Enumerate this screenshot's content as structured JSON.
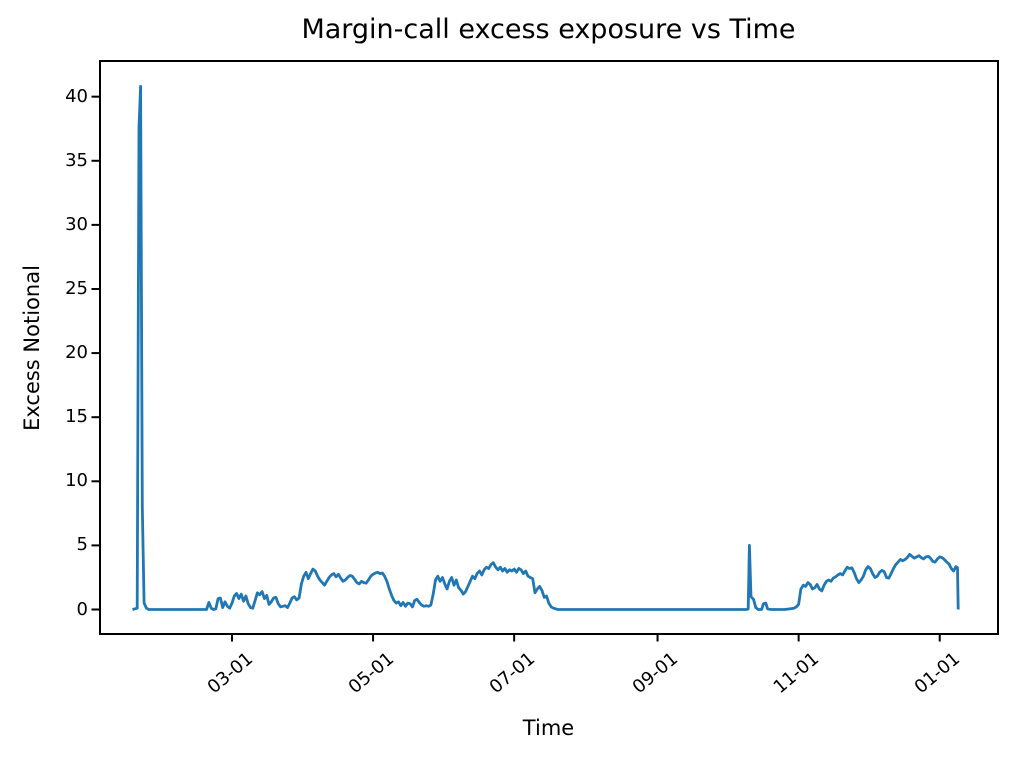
{
  "figure": {
    "title": "Margin-call excess exposure vs Time"
  },
  "chart_data": {
    "type": "line",
    "title": "Margin-call excess exposure vs Time",
    "xlabel": "Time",
    "ylabel": "Excess Notional",
    "grid": false,
    "legend": null,
    "x_axis": {
      "unit": "date (month-day), daily observations spanning about one year",
      "tick_labels": [
        "03-01",
        "05-01",
        "07-01",
        "09-01",
        "11-01",
        "01-01"
      ],
      "tick_day_index": [
        59,
        120,
        181,
        243,
        304,
        365
      ],
      "range_day_index": [
        1.5,
        390.2
      ],
      "label_rotation_deg": 40
    },
    "y_axis": {
      "tick_values": [
        0,
        5,
        10,
        15,
        20,
        25,
        30,
        35,
        40
      ],
      "tick_labels": [
        "0",
        "5",
        "10",
        "15",
        "20",
        "25",
        "30",
        "35",
        "40"
      ],
      "range": [
        -1.91,
        42.86
      ]
    },
    "series": [
      {
        "name": "Excess Notional",
        "color": "#1f77b4",
        "line_width": 2.8,
        "points_day_value": [
          [
            16,
            0
          ],
          [
            17,
            0.05
          ],
          [
            18,
            0.1
          ],
          [
            18.8,
            37.6
          ],
          [
            19.5,
            40.8
          ],
          [
            20.2,
            8.0
          ],
          [
            21,
            0.5
          ],
          [
            22,
            0.1
          ],
          [
            23,
            0
          ],
          [
            30,
            0
          ],
          [
            40,
            0
          ],
          [
            48,
            0
          ],
          [
            49,
            0.55
          ],
          [
            50,
            0.1
          ],
          [
            51,
            0
          ],
          [
            52,
            0.05
          ],
          [
            53,
            0.85
          ],
          [
            54,
            0.9
          ],
          [
            55,
            0.15
          ],
          [
            56,
            0.6
          ],
          [
            57,
            0.25
          ],
          [
            58,
            0.1
          ],
          [
            59,
            0.5
          ],
          [
            60,
            1.05
          ],
          [
            61,
            1.25
          ],
          [
            62,
            0.85
          ],
          [
            63,
            1.2
          ],
          [
            64,
            0.65
          ],
          [
            65,
            1.05
          ],
          [
            66,
            0.45
          ],
          [
            67,
            0.15
          ],
          [
            68,
            0.1
          ],
          [
            69,
            0.7
          ],
          [
            70,
            1.3
          ],
          [
            71,
            1.15
          ],
          [
            72,
            1.4
          ],
          [
            73,
            0.85
          ],
          [
            74,
            1.1
          ],
          [
            75,
            0.4
          ],
          [
            76,
            0.6
          ],
          [
            77,
            0.9
          ],
          [
            78,
            0.95
          ],
          [
            79,
            0.45
          ],
          [
            80,
            0.2
          ],
          [
            81,
            0.25
          ],
          [
            82,
            0.3
          ],
          [
            83,
            0.15
          ],
          [
            84,
            0.5
          ],
          [
            85,
            0.9
          ],
          [
            86,
            1.0
          ],
          [
            87,
            0.75
          ],
          [
            88,
            0.9
          ],
          [
            89,
            2.0
          ],
          [
            90,
            2.6
          ],
          [
            91,
            2.9
          ],
          [
            92,
            2.4
          ],
          [
            93,
            2.8
          ],
          [
            94,
            3.15
          ],
          [
            95,
            3.0
          ],
          [
            96,
            2.6
          ],
          [
            97,
            2.3
          ],
          [
            98,
            2.1
          ],
          [
            99,
            1.9
          ],
          [
            100,
            2.2
          ],
          [
            101,
            2.5
          ],
          [
            102,
            2.7
          ],
          [
            103,
            2.8
          ],
          [
            104,
            2.55
          ],
          [
            105,
            2.75
          ],
          [
            106,
            2.45
          ],
          [
            107,
            2.2
          ],
          [
            108,
            2.3
          ],
          [
            109,
            2.5
          ],
          [
            110,
            2.65
          ],
          [
            111,
            2.6
          ],
          [
            112,
            2.35
          ],
          [
            113,
            2.1
          ],
          [
            114,
            2.0
          ],
          [
            115,
            2.2
          ],
          [
            116,
            2.1
          ],
          [
            117,
            2.05
          ],
          [
            118,
            2.3
          ],
          [
            119,
            2.6
          ],
          [
            120,
            2.75
          ],
          [
            121,
            2.85
          ],
          [
            122,
            2.9
          ],
          [
            123,
            2.8
          ],
          [
            124,
            2.85
          ],
          [
            125,
            2.6
          ],
          [
            126,
            2.2
          ],
          [
            127,
            1.6
          ],
          [
            128,
            1.1
          ],
          [
            129,
            0.7
          ],
          [
            130,
            0.5
          ],
          [
            131,
            0.6
          ],
          [
            132,
            0.3
          ],
          [
            133,
            0.55
          ],
          [
            134,
            0.25
          ],
          [
            135,
            0.5
          ],
          [
            136,
            0.45
          ],
          [
            137,
            0.2
          ],
          [
            138,
            0.7
          ],
          [
            139,
            0.8
          ],
          [
            140,
            0.55
          ],
          [
            141,
            0.35
          ],
          [
            142,
            0.25
          ],
          [
            143,
            0.3
          ],
          [
            144,
            0.25
          ],
          [
            145,
            0.35
          ],
          [
            146,
            1.2
          ],
          [
            147,
            2.3
          ],
          [
            148,
            2.6
          ],
          [
            149,
            2.2
          ],
          [
            150,
            2.5
          ],
          [
            151,
            2.0
          ],
          [
            152,
            1.6
          ],
          [
            153,
            2.2
          ],
          [
            154,
            2.5
          ],
          [
            155,
            1.9
          ],
          [
            156,
            2.3
          ],
          [
            157,
            1.7
          ],
          [
            158,
            1.5
          ],
          [
            159,
            1.2
          ],
          [
            160,
            1.4
          ],
          [
            161,
            1.8
          ],
          [
            162,
            2.2
          ],
          [
            163,
            2.6
          ],
          [
            164,
            2.4
          ],
          [
            165,
            2.8
          ],
          [
            166,
            3.0
          ],
          [
            167,
            2.7
          ],
          [
            168,
            3.1
          ],
          [
            169,
            3.3
          ],
          [
            170,
            3.2
          ],
          [
            171,
            3.5
          ],
          [
            172,
            3.65
          ],
          [
            173,
            3.3
          ],
          [
            174,
            3.1
          ],
          [
            175,
            3.3
          ],
          [
            176,
            3.0
          ],
          [
            177,
            3.2
          ],
          [
            178,
            2.9
          ],
          [
            179,
            3.1
          ],
          [
            180,
            3.0
          ],
          [
            181,
            3.15
          ],
          [
            182,
            2.9
          ],
          [
            183,
            3.2
          ],
          [
            184,
            3.1
          ],
          [
            185,
            2.8
          ],
          [
            186,
            3.0
          ],
          [
            187,
            2.6
          ],
          [
            188,
            2.5
          ],
          [
            189,
            2.4
          ],
          [
            190,
            1.3
          ],
          [
            191,
            1.6
          ],
          [
            192,
            1.8
          ],
          [
            193,
            1.5
          ],
          [
            194,
            0.95
          ],
          [
            195,
            1.05
          ],
          [
            196,
            0.5
          ],
          [
            197,
            0.2
          ],
          [
            198,
            0.1
          ],
          [
            199,
            0.05
          ],
          [
            200,
            0
          ],
          [
            215,
            0
          ],
          [
            235,
            0
          ],
          [
            255,
            0
          ],
          [
            275,
            0
          ],
          [
            281.5,
            0
          ],
          [
            282.2,
            0.05
          ],
          [
            282.7,
            5.0
          ],
          [
            283.4,
            1.0
          ],
          [
            284.5,
            0.8
          ],
          [
            285.5,
            0.15
          ],
          [
            286.5,
            0
          ],
          [
            288,
            0
          ],
          [
            288.8,
            0.45
          ],
          [
            289.8,
            0.5
          ],
          [
            290.6,
            0.05
          ],
          [
            292,
            0
          ],
          [
            298,
            0
          ],
          [
            302,
            0.1
          ],
          [
            303,
            0.2
          ],
          [
            304,
            0.4
          ],
          [
            305,
            1.6
          ],
          [
            306,
            1.9
          ],
          [
            307,
            1.8
          ],
          [
            308,
            2.1
          ],
          [
            309,
            1.95
          ],
          [
            310,
            1.6
          ],
          [
            311,
            1.7
          ],
          [
            312,
            1.95
          ],
          [
            313,
            1.6
          ],
          [
            314,
            1.45
          ],
          [
            315,
            1.9
          ],
          [
            316,
            2.2
          ],
          [
            317,
            2.3
          ],
          [
            318,
            2.2
          ],
          [
            319,
            2.45
          ],
          [
            320,
            2.55
          ],
          [
            321,
            2.7
          ],
          [
            322,
            2.8
          ],
          [
            323,
            2.7
          ],
          [
            324,
            3.0
          ],
          [
            325,
            3.3
          ],
          [
            326,
            3.2
          ],
          [
            327,
            3.25
          ],
          [
            328,
            2.9
          ],
          [
            329,
            2.4
          ],
          [
            330,
            2.1
          ],
          [
            331,
            2.3
          ],
          [
            332,
            2.6
          ],
          [
            333,
            3.1
          ],
          [
            334,
            3.35
          ],
          [
            335,
            3.2
          ],
          [
            336,
            2.8
          ],
          [
            337,
            2.5
          ],
          [
            338,
            2.6
          ],
          [
            339,
            2.9
          ],
          [
            340,
            3.05
          ],
          [
            341,
            2.95
          ],
          [
            342,
            2.5
          ],
          [
            343,
            2.45
          ],
          [
            344,
            2.8
          ],
          [
            345,
            3.2
          ],
          [
            346,
            3.5
          ],
          [
            347,
            3.7
          ],
          [
            348,
            3.9
          ],
          [
            349,
            3.8
          ],
          [
            350,
            3.9
          ],
          [
            351,
            4.05
          ],
          [
            352,
            4.3
          ],
          [
            353,
            4.15
          ],
          [
            354,
            4.0
          ],
          [
            355,
            4.1
          ],
          [
            356,
            4.2
          ],
          [
            357,
            4.05
          ],
          [
            358,
            3.95
          ],
          [
            359,
            4.1
          ],
          [
            360,
            4.15
          ],
          [
            361,
            4.0
          ],
          [
            362,
            3.75
          ],
          [
            363,
            3.7
          ],
          [
            364,
            3.95
          ],
          [
            365,
            4.1
          ],
          [
            366,
            4.05
          ],
          [
            367,
            3.9
          ],
          [
            368,
            3.7
          ],
          [
            369,
            3.55
          ],
          [
            370,
            3.2
          ],
          [
            371,
            3.0
          ],
          [
            372,
            3.35
          ],
          [
            372.7,
            3.25
          ],
          [
            373,
            0
          ]
        ]
      }
    ],
    "frame_color": "#000000",
    "background_color": "#ffffff"
  }
}
